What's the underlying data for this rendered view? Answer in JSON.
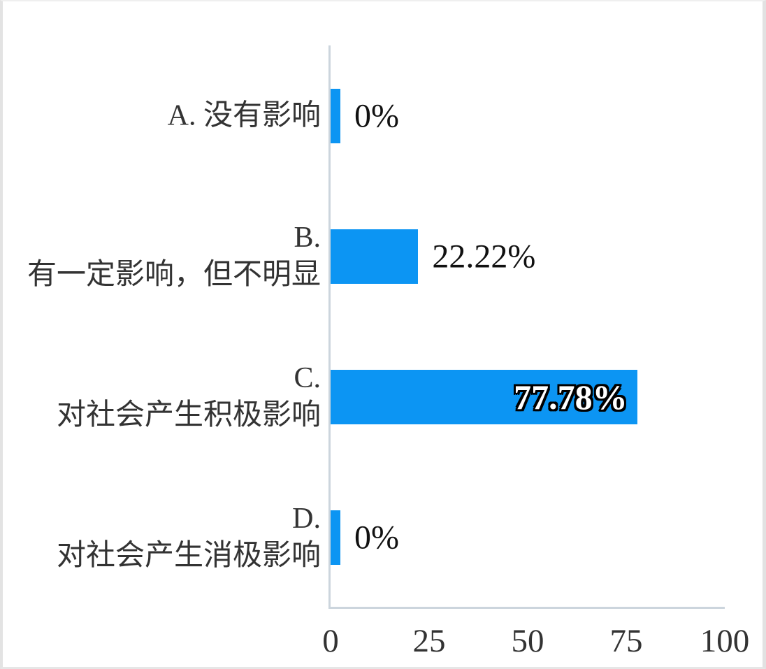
{
  "frame": {
    "background": "#ffffff",
    "border_color": "#e3e3e3"
  },
  "chart_data": {
    "type": "bar",
    "orientation": "horizontal",
    "title": "",
    "xlabel": "",
    "ylabel": "",
    "categories": [
      {
        "label_lines": [
          "A. 没有影响"
        ],
        "value": 0,
        "value_label": "0%"
      },
      {
        "label_lines": [
          "B.",
          "有一定影响，但不明显"
        ],
        "value": 22.22,
        "value_label": "22.22%"
      },
      {
        "label_lines": [
          "C.",
          "对社会产生积极影响"
        ],
        "value": 77.78,
        "value_label": "77.78%"
      },
      {
        "label_lines": [
          "D.",
          "对社会产生消极影响"
        ],
        "value": 0,
        "value_label": "0%"
      }
    ],
    "xlim": [
      0,
      100
    ],
    "x_ticks": [
      "0",
      "25",
      "50",
      "75",
      "100"
    ],
    "grid": false,
    "legend": null,
    "bar_color": "#0c95f3",
    "axis_color": "#ccd5dd",
    "category_label_color": "#333333",
    "value_label_color": "#111111",
    "big_bar_value_label_style": "bold white text with black outline, inside bar"
  }
}
